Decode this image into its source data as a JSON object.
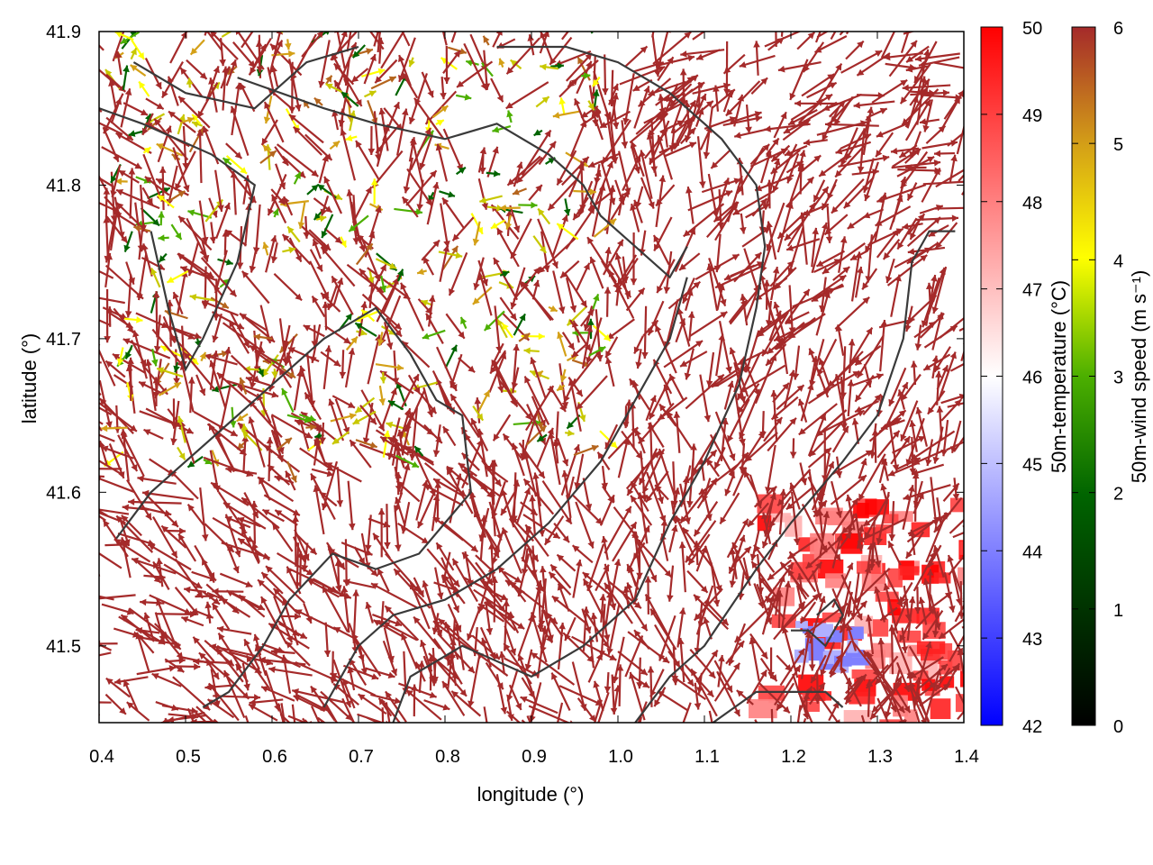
{
  "chart_data": {
    "type": "vector-field-heatmap",
    "title": "",
    "xlabel": "longitude (°)",
    "ylabel": "latitude (°)",
    "xlim": [
      0.4,
      1.4
    ],
    "ylim": [
      41.45,
      41.9
    ],
    "xticks": [
      0.4,
      0.5,
      0.6,
      0.7,
      0.8,
      0.9,
      1.0,
      1.1,
      1.2,
      1.3,
      1.4
    ],
    "xtick_labels": [
      "0.4",
      "0.5",
      "0.6",
      "0.7",
      "0.8",
      "0.9",
      "1.0",
      "1.1",
      "1.2",
      "1.3",
      "1.4"
    ],
    "yticks": [
      41.5,
      41.6,
      41.7,
      41.8,
      41.9
    ],
    "ytick_labels": [
      "41.5",
      "41.6",
      "41.7",
      "41.8",
      "41.9"
    ],
    "temperature_colorbar": {
      "label": "50m-temperature (°C)",
      "range": [
        42,
        50
      ],
      "ticks": [
        "42",
        "43",
        "44",
        "45",
        "46",
        "47",
        "48",
        "49",
        "50"
      ],
      "colors": [
        "#0000ff",
        "#ffffff",
        "#ff0000"
      ]
    },
    "wind_colorbar": {
      "label": "50m-wind speed (m s⁻¹)",
      "range": [
        0,
        6
      ],
      "ticks": [
        "0",
        "1",
        "2",
        "3",
        "4",
        "5",
        "6"
      ],
      "colors": [
        "#000000",
        "#006400",
        "#4caf00",
        "#ffff00",
        "#d4a017",
        "#b5651d",
        "#a52a2a"
      ]
    },
    "arrow_color_dominant": "#a52a2a",
    "contour_color": "#3a3a3a",
    "warm_region": {
      "lon_range": [
        1.1,
        1.4
      ],
      "lat_range": [
        41.45,
        41.6
      ],
      "temperature_max": 50
    },
    "cool_spot": {
      "lon": 1.25,
      "lat": 41.5,
      "temperature_min": 44
    },
    "calm_region": {
      "lon_range": [
        0.42,
        0.98
      ],
      "lat_range": [
        41.62,
        41.9
      ],
      "wind_speed_min": 1
    }
  }
}
